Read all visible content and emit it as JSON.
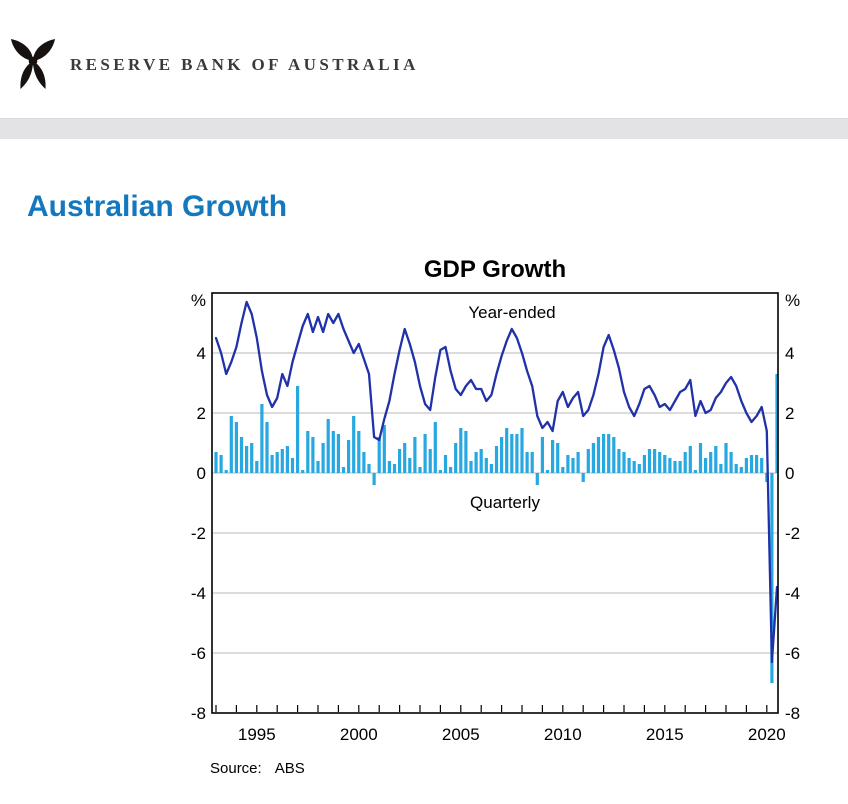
{
  "header": {
    "bank_name": "RESERVE BANK OF AUSTRALIA",
    "logo": "rba-emblem"
  },
  "page": {
    "heading": "Australian Growth"
  },
  "chart_data": {
    "type": "bar",
    "title": "GDP Growth",
    "unit_label": "%",
    "frequency": "quarterly",
    "x_start": "1993 Q1",
    "x_end": "2020 Q3",
    "ylim": [
      -8,
      6
    ],
    "gridlines": [
      4,
      2,
      0,
      -2,
      -4,
      -6
    ],
    "y_axis_labels": [
      4,
      2,
      0,
      -2,
      -4,
      -6,
      -8
    ],
    "x_tick_years": [
      1995,
      2000,
      2005,
      2010,
      2015,
      2020
    ],
    "grid_color": "#b9b9b9",
    "axis_color": "#000000",
    "series": [
      {
        "name": "Year-ended",
        "type": "line",
        "color": "#2132A8",
        "values": [
          4.5,
          4.0,
          3.3,
          3.7,
          4.2,
          5.0,
          5.7,
          5.3,
          4.5,
          3.4,
          2.6,
          2.2,
          2.5,
          3.3,
          2.9,
          3.7,
          4.3,
          4.9,
          5.3,
          4.7,
          5.2,
          4.7,
          5.3,
          5.0,
          5.3,
          4.8,
          4.4,
          4.0,
          4.3,
          3.8,
          3.3,
          1.2,
          1.1,
          1.8,
          2.4,
          3.3,
          4.1,
          4.8,
          4.3,
          3.7,
          2.9,
          2.3,
          2.1,
          3.2,
          4.1,
          4.2,
          3.4,
          2.8,
          2.6,
          2.9,
          3.1,
          2.8,
          2.8,
          2.4,
          2.6,
          3.3,
          3.9,
          4.4,
          4.8,
          4.5,
          4.0,
          3.4,
          2.9,
          1.9,
          1.5,
          1.7,
          1.4,
          2.4,
          2.7,
          2.2,
          2.5,
          2.7,
          1.9,
          2.1,
          2.6,
          3.3,
          4.2,
          4.6,
          4.1,
          3.5,
          2.7,
          2.2,
          1.9,
          2.3,
          2.8,
          2.9,
          2.6,
          2.2,
          2.3,
          2.1,
          2.4,
          2.7,
          2.8,
          3.1,
          1.9,
          2.4,
          2.0,
          2.1,
          2.5,
          2.7,
          3.0,
          3.2,
          2.9,
          2.4,
          2.0,
          1.7,
          1.9,
          2.2,
          1.4,
          -6.3,
          -3.8
        ]
      },
      {
        "name": "Quarterly",
        "type": "bar",
        "color": "#27A8E0",
        "values": [
          0.7,
          0.6,
          0.1,
          1.9,
          1.7,
          1.2,
          0.9,
          1.0,
          0.4,
          2.3,
          1.7,
          0.6,
          0.7,
          0.8,
          0.9,
          0.5,
          2.9,
          0.1,
          1.4,
          1.2,
          0.4,
          1.0,
          1.8,
          1.4,
          1.3,
          0.2,
          1.1,
          1.9,
          1.4,
          0.7,
          0.3,
          -0.4,
          1.2,
          1.6,
          0.4,
          0.3,
          0.8,
          1.0,
          0.5,
          1.2,
          0.2,
          1.3,
          0.8,
          1.7,
          0.1,
          0.6,
          0.2,
          1.0,
          1.5,
          1.4,
          0.4,
          0.7,
          0.8,
          0.5,
          0.3,
          0.9,
          1.2,
          1.5,
          1.3,
          1.3,
          1.5,
          0.7,
          0.7,
          -0.4,
          1.2,
          0.1,
          1.1,
          1.0,
          0.2,
          0.6,
          0.5,
          0.7,
          -0.3,
          0.8,
          1.0,
          1.2,
          1.3,
          1.3,
          1.2,
          0.8,
          0.7,
          0.5,
          0.4,
          0.3,
          0.6,
          0.8,
          0.8,
          0.7,
          0.6,
          0.5,
          0.4,
          0.4,
          0.7,
          0.9,
          0.1,
          1.0,
          0.5,
          0.7,
          0.9,
          0.3,
          1.0,
          0.7,
          0.3,
          0.2,
          0.5,
          0.6,
          0.6,
          0.5,
          -0.3,
          -7.0,
          3.3
        ]
      }
    ],
    "line_label": "Year-ended",
    "bar_label": "Quarterly",
    "source_label": "Source:",
    "source_value": "ABS"
  }
}
